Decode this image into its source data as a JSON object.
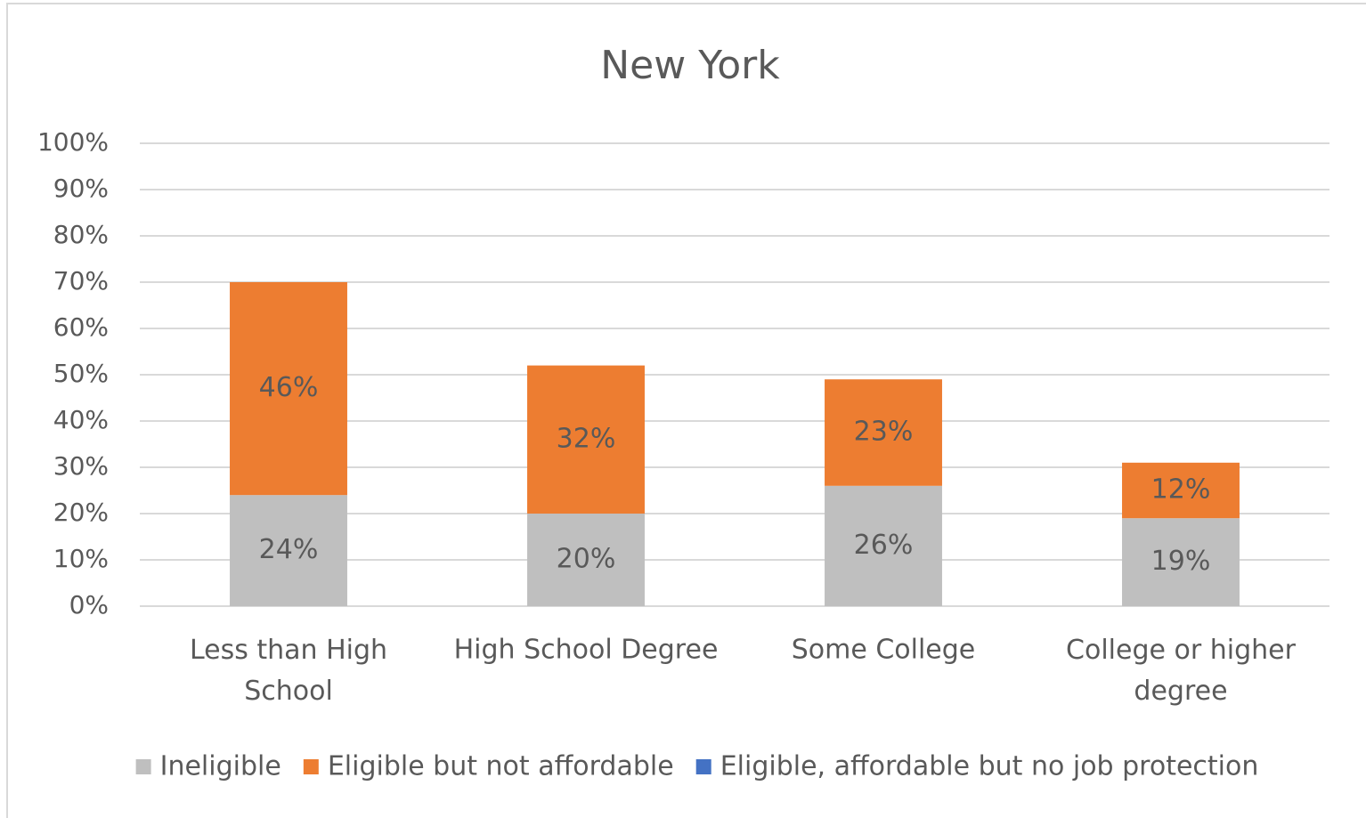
{
  "chart_data": {
    "type": "stacked_bar",
    "title": "New York",
    "categories": [
      "Less than High School",
      "High School Degree",
      "Some College",
      "College or higher degree"
    ],
    "series": [
      {
        "name": "Ineligible",
        "color": "#bfbfbf",
        "values": [
          24,
          20,
          26,
          19
        ],
        "value_labels": [
          "24%",
          "20%",
          "26%",
          "19%"
        ]
      },
      {
        "name": "Eligible but not affordable",
        "color": "#ed7d31",
        "values": [
          46,
          32,
          23,
          12
        ],
        "value_labels": [
          "46%",
          "32%",
          "23%",
          "12%"
        ]
      },
      {
        "name": "Eligible, affordable but no job protection",
        "color": "#4472c4",
        "values": [
          0,
          0,
          0,
          0
        ]
      }
    ],
    "ylim": [
      0,
      100
    ],
    "yticks": [
      {
        "value": 0,
        "label": "0%"
      },
      {
        "value": 10,
        "label": "10%"
      },
      {
        "value": 20,
        "label": "20%"
      },
      {
        "value": 30,
        "label": "30%"
      },
      {
        "value": 40,
        "label": "40%"
      },
      {
        "value": 50,
        "label": "50%"
      },
      {
        "value": 60,
        "label": "60%"
      },
      {
        "value": 70,
        "label": "70%"
      },
      {
        "value": 80,
        "label": "80%"
      },
      {
        "value": 90,
        "label": "90%"
      },
      {
        "value": 100,
        "label": "100%"
      }
    ],
    "grid": true,
    "legend": "bottom"
  }
}
